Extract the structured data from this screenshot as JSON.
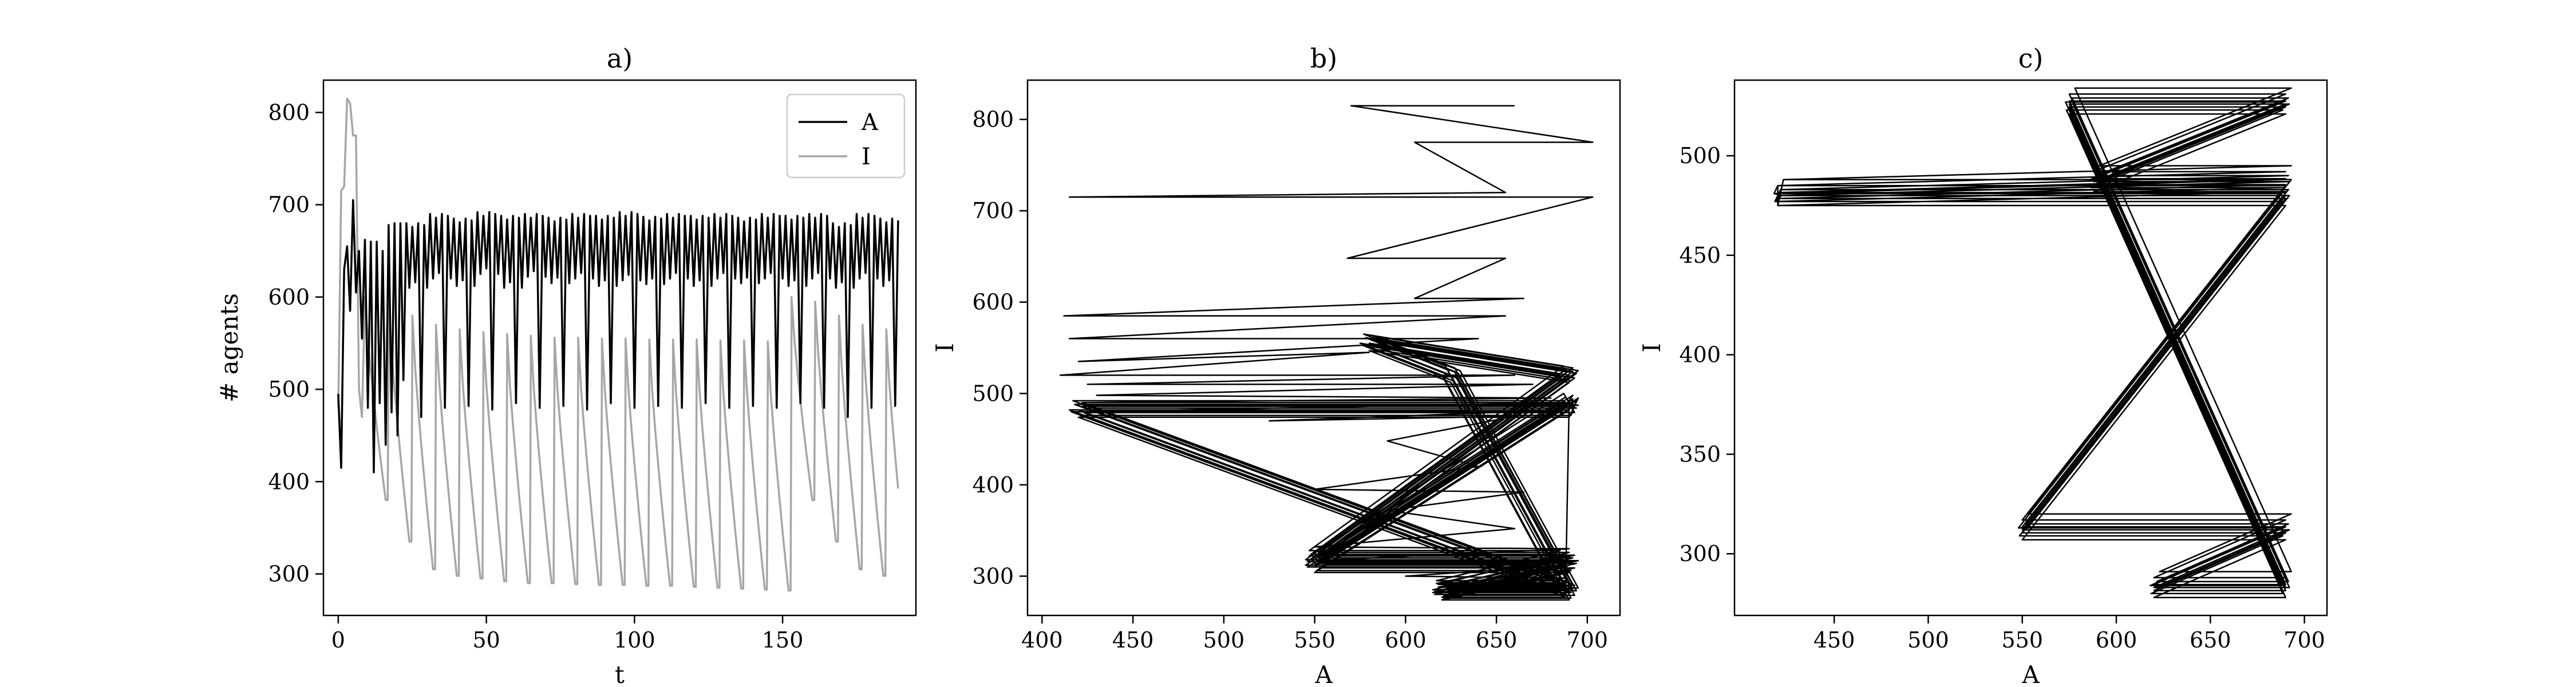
{
  "chart_data": [
    {
      "type": "line",
      "title": "a)",
      "xlabel": "t",
      "ylabel": "# agents",
      "xlim": [
        -5,
        195
      ],
      "ylim": [
        255,
        835
      ],
      "xticks": [
        0,
        50,
        100,
        150
      ],
      "yticks": [
        300,
        400,
        500,
        600,
        700,
        800
      ],
      "grid": false,
      "legend": "top-right",
      "series": [
        {
          "name": "A",
          "color": "#000000",
          "start_values": [
            495,
            415,
            630,
            655,
            585,
            705,
            605,
            650,
            555,
            662,
            480,
            660,
            410,
            660,
            485,
            650,
            440,
            678,
            475,
            680,
            450,
            680,
            510
          ],
          "cycle_high": [
            680,
            690,
            685,
            692,
            688,
            690,
            686,
            690,
            688,
            692,
            687,
            690,
            688,
            690,
            686,
            690,
            688,
            690
          ],
          "cycle_mid": [
            610,
            620,
            612,
            625,
            610,
            622,
            615,
            620,
            612,
            618,
            614,
            620,
            612,
            620,
            615,
            620,
            612,
            620
          ],
          "cycle_low": [
            470,
            480,
            482,
            478,
            485,
            480,
            482,
            478,
            485,
            480,
            482,
            480,
            485,
            480,
            482,
            480,
            485,
            480
          ],
          "t_end": 189
        },
        {
          "name": "I",
          "color": "#a6a6a6",
          "start_values": [
            480,
            715,
            720,
            815,
            810,
            775,
            775,
            500,
            470
          ],
          "cycle_peak": [
            600,
            595,
            580,
            570,
            565,
            562,
            560,
            558,
            556,
            556,
            555,
            555,
            554,
            554,
            554,
            553,
            553,
            552
          ],
          "cycle_trough": [
            380,
            335,
            305,
            298,
            295,
            292,
            290,
            290,
            289,
            288,
            288,
            287,
            287,
            286,
            285,
            284,
            283,
            282
          ],
          "t_end": 189
        }
      ]
    },
    {
      "type": "line",
      "title": "b)",
      "xlabel": "A",
      "ylabel": "I",
      "xlim": [
        392,
        718
      ],
      "ylim": [
        257,
        843
      ],
      "xticks": [
        400,
        450,
        500,
        550,
        600,
        650,
        700
      ],
      "yticks": [
        300,
        400,
        500,
        600,
        700,
        800
      ],
      "grid": false,
      "series": [
        {
          "name": "",
          "color": "#000000",
          "points": [
            [
              660,
              815
            ],
            [
              570,
              815
            ],
            [
              703,
              775
            ],
            [
              605,
              775
            ],
            [
              655,
              720
            ],
            [
              415,
              715
            ],
            [
              703,
              715
            ],
            [
              568,
              648
            ],
            [
              655,
              648
            ],
            [
              605,
              604
            ],
            [
              665,
              604
            ],
            [
              412,
              585
            ],
            [
              655,
              585
            ],
            [
              415,
              560
            ],
            [
              640,
              560
            ],
            [
              420,
              535
            ],
            [
              580,
              545
            ],
            [
              410,
              520
            ],
            [
              660,
              520
            ],
            [
              425,
              510
            ],
            [
              670,
              510
            ],
            [
              430,
              498
            ],
            [
              680,
              495
            ],
            [
              425,
              490
            ],
            [
              690,
              490
            ],
            [
              420,
              480
            ],
            [
              688,
              482
            ],
            [
              525,
              470
            ],
            [
              660,
              475
            ],
            [
              590,
              448
            ],
            [
              640,
              420
            ],
            [
              550,
              395
            ],
            [
              665,
              392
            ],
            [
              590,
              372
            ],
            [
              660,
              352
            ],
            [
              550,
              332
            ],
            [
              690,
              330
            ],
            [
              560,
              318
            ],
            [
              688,
              318
            ],
            [
              550,
              314
            ],
            [
              690,
              312
            ],
            [
              600,
              300
            ],
            [
              688,
              298
            ],
            [
              620,
              288
            ],
            [
              690,
              285
            ],
            [
              645,
              282
            ],
            [
              688,
              282
            ]
          ],
          "cycle": [
            [
              690,
              490
            ],
            [
              550,
              312
            ],
            [
              690,
              312
            ],
            [
              620,
              282
            ],
            [
              690,
              282
            ],
            [
              625,
              520
            ],
            [
              580,
              555
            ],
            [
              690,
              520
            ],
            [
              550,
              318
            ],
            [
              688,
              318
            ],
            [
              620,
              285
            ],
            [
              688,
              285
            ],
            [
              420,
              482
            ],
            [
              690,
              482
            ]
          ]
        }
      ]
    },
    {
      "type": "line",
      "title": "c)",
      "xlabel": "A",
      "ylabel": "I",
      "xlim": [
        397,
        712
      ],
      "ylim": [
        269,
        538
      ],
      "xticks": [
        450,
        500,
        550,
        600,
        650,
        700
      ],
      "yticks": [
        300,
        350,
        400,
        450,
        500
      ],
      "grid": false,
      "series": [
        {
          "name": "",
          "color": "#000000",
          "cycle": [
            [
              420,
              480
            ],
            [
              690,
              480
            ],
            [
              550,
              312
            ],
            [
              690,
              312
            ],
            [
              620,
              283
            ],
            [
              690,
              283
            ],
            [
              575,
              526
            ],
            [
              690,
              526
            ],
            [
              588,
              487
            ],
            [
              690,
              487
            ],
            [
              420,
              480
            ]
          ],
          "variants": [
            [
              0,
              0
            ],
            [
              0,
              1.5
            ],
            [
              0,
              -1.5
            ],
            [
              1.5,
              3
            ],
            [
              -1.5,
              -3
            ],
            [
              2,
              0
            ],
            [
              -2,
              1
            ],
            [
              0,
              5
            ],
            [
              0,
              -5
            ],
            [
              3,
              8
            ]
          ]
        }
      ]
    }
  ]
}
